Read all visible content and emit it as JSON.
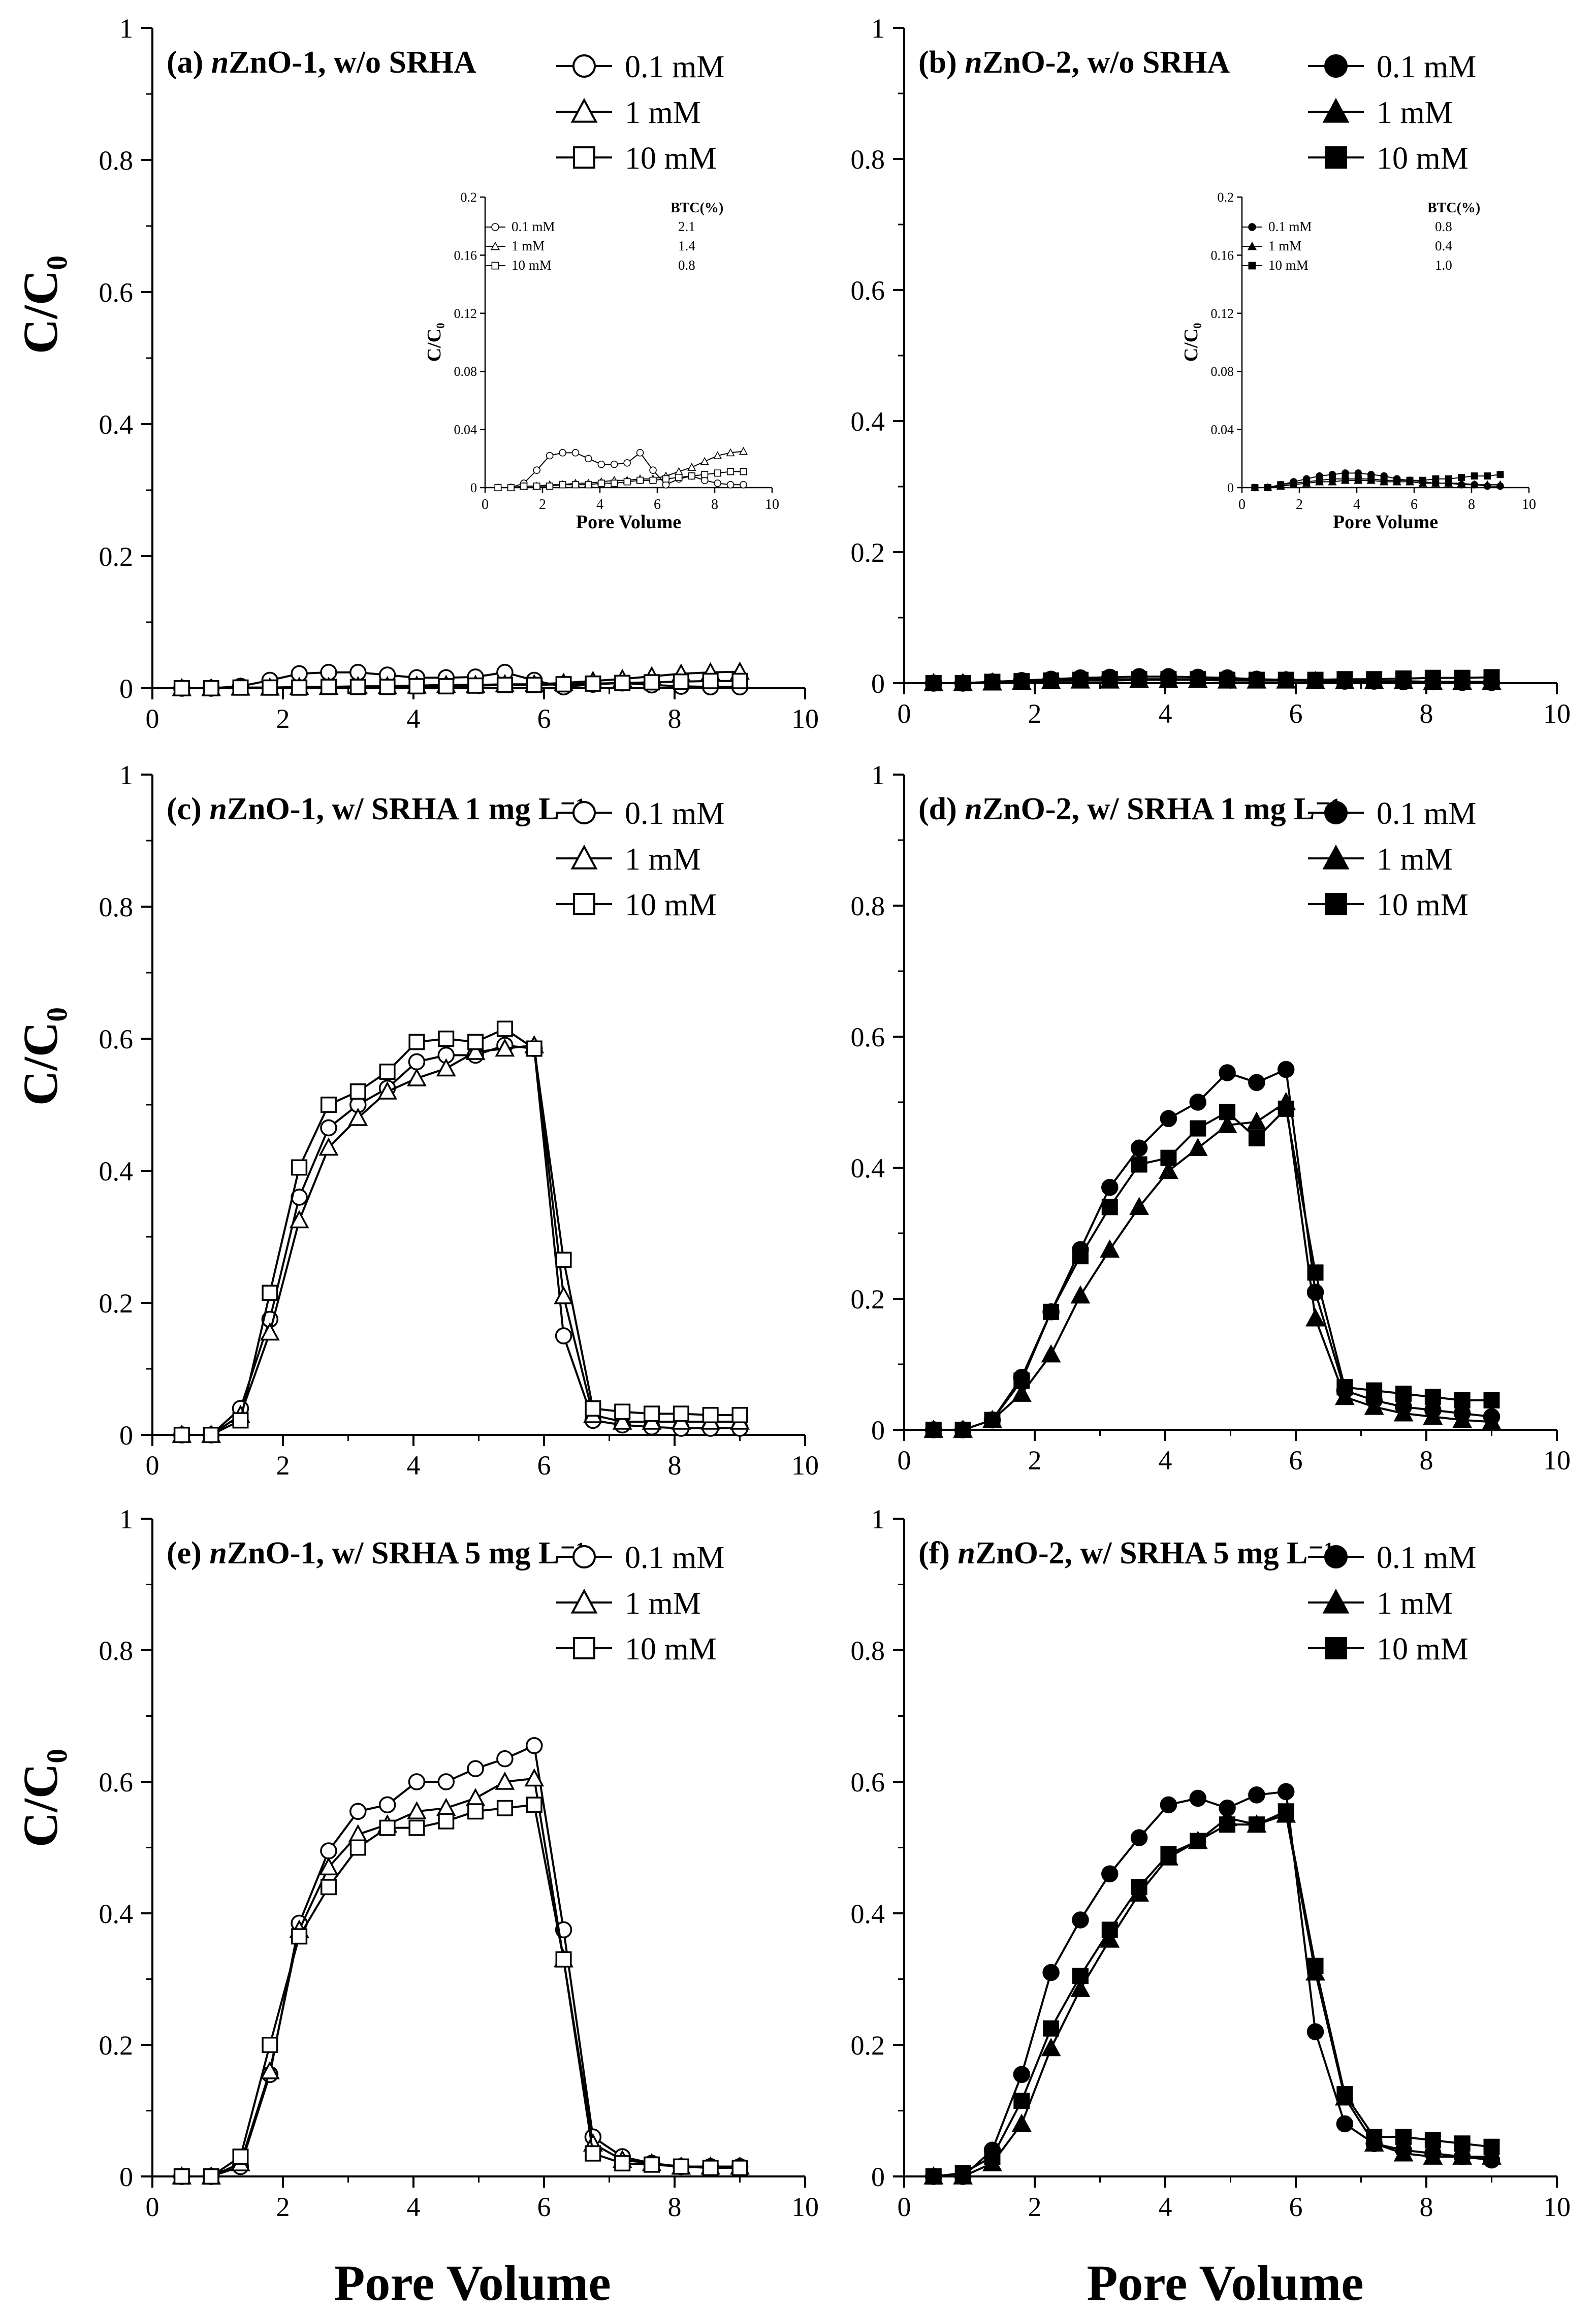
{
  "figure": {
    "ylabel": "C/C₀",
    "xlabel": "Pore Volume"
  },
  "chart_data": [
    {
      "id": "a",
      "type": "line",
      "title_prefix": "(a) ",
      "title_italic": "n",
      "title_rest": "ZnO-1, w/o SRHA",
      "xlim": [
        0,
        10
      ],
      "ylim": [
        0,
        1
      ],
      "xticks": [
        "0",
        "2",
        "4",
        "6",
        "8",
        "10"
      ],
      "yticks": [
        "0",
        "0.2",
        "0.4",
        "0.6",
        "0.8",
        "1"
      ],
      "grid": false,
      "legend_position": "top-right",
      "marker_fill": "open",
      "x": [
        0.45,
        0.9,
        1.35,
        1.8,
        2.25,
        2.7,
        3.15,
        3.6,
        4.05,
        4.5,
        4.95,
        5.4,
        5.85,
        6.3,
        6.75,
        7.2,
        7.65,
        8.1,
        8.55,
        9.0
      ],
      "series": [
        {
          "name": "0.1 mM",
          "marker": "circle",
          "values": [
            0,
            0,
            0.003,
            0.012,
            0.022,
            0.024,
            0.024,
            0.02,
            0.016,
            0.016,
            0.017,
            0.024,
            0.012,
            0.002,
            0.006,
            0.008,
            0.005,
            0.003,
            0.002,
            0.002
          ]
        },
        {
          "name": "1 mM",
          "marker": "triangle",
          "values": [
            0,
            0,
            0.001,
            0.001,
            0.002,
            0.002,
            0.003,
            0.003,
            0.004,
            0.005,
            0.005,
            0.006,
            0.006,
            0.008,
            0.011,
            0.014,
            0.018,
            0.022,
            0.024,
            0.025
          ]
        },
        {
          "name": "10 mM",
          "marker": "square",
          "values": [
            0,
            0,
            0.001,
            0.001,
            0.001,
            0.002,
            0.002,
            0.002,
            0.003,
            0.003,
            0.004,
            0.005,
            0.005,
            0.006,
            0.007,
            0.008,
            0.009,
            0.01,
            0.011,
            0.011
          ]
        }
      ],
      "inset": {
        "xlim": [
          0,
          10
        ],
        "ylim": [
          0,
          0.2
        ],
        "xticks": [
          "0",
          "2",
          "4",
          "6",
          "8",
          "10"
        ],
        "yticks": [
          "0",
          "0.04",
          "0.08",
          "0.12",
          "0.16",
          "0.2"
        ],
        "xlabel": "Pore Volume",
        "ylabel": "C/C₀",
        "table_header": "BTC(%)",
        "btc": [
          "2.1",
          "1.4",
          "0.8"
        ]
      }
    },
    {
      "id": "b",
      "type": "line",
      "title_prefix": "(b) ",
      "title_italic": "n",
      "title_rest": "ZnO-2, w/o SRHA",
      "xlim": [
        0,
        10
      ],
      "ylim": [
        0,
        1
      ],
      "xticks": [
        "0",
        "2",
        "4",
        "6",
        "8",
        "10"
      ],
      "yticks": [
        "0",
        "0.2",
        "0.4",
        "0.6",
        "0.8",
        "1"
      ],
      "grid": false,
      "legend_position": "top-right",
      "marker_fill": "filled",
      "x": [
        0.45,
        0.9,
        1.35,
        1.8,
        2.25,
        2.7,
        3.15,
        3.6,
        4.05,
        4.5,
        4.95,
        5.4,
        5.85,
        6.3,
        6.75,
        7.2,
        7.65,
        8.1,
        8.55,
        9.0
      ],
      "series": [
        {
          "name": "0.1 mM",
          "marker": "circle",
          "values": [
            0,
            0,
            0.002,
            0.004,
            0.006,
            0.008,
            0.009,
            0.01,
            0.01,
            0.009,
            0.008,
            0.006,
            0.005,
            0.004,
            0.003,
            0.003,
            0.002,
            0.002,
            0.001,
            0.001
          ]
        },
        {
          "name": "1 mM",
          "marker": "triangle",
          "values": [
            0,
            0,
            0.001,
            0.002,
            0.003,
            0.004,
            0.004,
            0.005,
            0.005,
            0.005,
            0.004,
            0.004,
            0.004,
            0.003,
            0.003,
            0.003,
            0.003,
            0.002,
            0.002,
            0.002
          ]
        },
        {
          "name": "10 mM",
          "marker": "square",
          "values": [
            0,
            0,
            0.002,
            0.003,
            0.004,
            0.005,
            0.006,
            0.006,
            0.006,
            0.006,
            0.005,
            0.005,
            0.005,
            0.005,
            0.006,
            0.006,
            0.007,
            0.008,
            0.008,
            0.009
          ]
        }
      ],
      "inset": {
        "xlim": [
          0,
          10
        ],
        "ylim": [
          0,
          0.2
        ],
        "xticks": [
          "0",
          "2",
          "4",
          "6",
          "8",
          "10"
        ],
        "yticks": [
          "0",
          "0.04",
          "0.08",
          "0.12",
          "0.16",
          "0.2"
        ],
        "xlabel": "Pore Volume",
        "ylabel": "C/C₀",
        "table_header": "BTC(%)",
        "btc": [
          "0.8",
          "0.4",
          "1.0"
        ]
      }
    },
    {
      "id": "c",
      "type": "line",
      "title_prefix": "(c) ",
      "title_italic": "n",
      "title_rest": "ZnO-1, w/ SRHA 1 mg L⁻¹",
      "xlim": [
        0,
        10
      ],
      "ylim": [
        0,
        1
      ],
      "xticks": [
        "0",
        "2",
        "4",
        "6",
        "8",
        "10"
      ],
      "yticks": [
        "0",
        "0.2",
        "0.4",
        "0.6",
        "0.8",
        "1"
      ],
      "grid": false,
      "legend_position": "top-right",
      "marker_fill": "open",
      "x": [
        0.45,
        0.9,
        1.35,
        1.8,
        2.25,
        2.7,
        3.15,
        3.6,
        4.05,
        4.5,
        4.95,
        5.4,
        5.85,
        6.3,
        6.75,
        7.2,
        7.65,
        8.1,
        8.55,
        9.0
      ],
      "series": [
        {
          "name": "0.1 mM",
          "marker": "circle",
          "values": [
            0,
            0,
            0.04,
            0.175,
            0.36,
            0.465,
            0.5,
            0.525,
            0.565,
            0.575,
            0.575,
            0.59,
            0.585,
            0.15,
            0.022,
            0.015,
            0.012,
            0.01,
            0.01,
            0.01
          ]
        },
        {
          "name": "1 mM",
          "marker": "triangle",
          "values": [
            0,
            0,
            0.03,
            0.155,
            0.325,
            0.435,
            0.48,
            0.52,
            0.54,
            0.555,
            0.58,
            0.585,
            0.59,
            0.21,
            0.03,
            0.02,
            0.02,
            0.02,
            0.02,
            0.02
          ]
        },
        {
          "name": "10 mM",
          "marker": "square",
          "values": [
            0,
            0,
            0.022,
            0.215,
            0.405,
            0.5,
            0.52,
            0.55,
            0.595,
            0.6,
            0.595,
            0.615,
            0.585,
            0.265,
            0.04,
            0.035,
            0.032,
            0.032,
            0.03,
            0.03
          ]
        }
      ]
    },
    {
      "id": "d",
      "type": "line",
      "title_prefix": "(d) ",
      "title_italic": "n",
      "title_rest": "ZnO-2, w/ SRHA 1 mg L⁻¹",
      "xlim": [
        0,
        10
      ],
      "ylim": [
        0,
        1
      ],
      "xticks": [
        "0",
        "2",
        "4",
        "6",
        "8",
        "10"
      ],
      "yticks": [
        "0",
        "0.2",
        "0.4",
        "0.6",
        "0.8",
        "1"
      ],
      "grid": false,
      "legend_position": "top-right",
      "marker_fill": "filled",
      "x": [
        0.45,
        0.9,
        1.35,
        1.8,
        2.25,
        2.7,
        3.15,
        3.6,
        4.05,
        4.5,
        4.95,
        5.4,
        5.85,
        6.3,
        6.75,
        7.2,
        7.65,
        8.1,
        8.55,
        9.0
      ],
      "series": [
        {
          "name": "0.1 mM",
          "marker": "circle",
          "values": [
            0,
            0,
            0.015,
            0.08,
            0.18,
            0.275,
            0.37,
            0.43,
            0.475,
            0.5,
            0.545,
            0.53,
            0.55,
            0.21,
            0.06,
            0.045,
            0.035,
            0.03,
            0.025,
            0.02
          ]
        },
        {
          "name": "1 mM",
          "marker": "triangle",
          "values": [
            0,
            0,
            0.015,
            0.055,
            0.115,
            0.205,
            0.275,
            0.34,
            0.395,
            0.43,
            0.465,
            0.47,
            0.5,
            0.17,
            0.05,
            0.035,
            0.025,
            0.02,
            0.015,
            0.012
          ]
        },
        {
          "name": "10 mM",
          "marker": "square",
          "values": [
            0,
            0,
            0.015,
            0.075,
            0.18,
            0.265,
            0.34,
            0.405,
            0.415,
            0.46,
            0.485,
            0.445,
            0.49,
            0.24,
            0.065,
            0.06,
            0.055,
            0.05,
            0.045,
            0.045
          ]
        }
      ]
    },
    {
      "id": "e",
      "type": "line",
      "title_prefix": "(e) ",
      "title_italic": "n",
      "title_rest": "ZnO-1, w/ SRHA 5 mg L⁻¹",
      "xlim": [
        0,
        10
      ],
      "ylim": [
        0,
        1
      ],
      "xticks": [
        "0",
        "2",
        "4",
        "6",
        "8",
        "10"
      ],
      "yticks": [
        "0",
        "0.2",
        "0.4",
        "0.6",
        "0.8",
        "1"
      ],
      "grid": false,
      "legend_position": "top-right",
      "marker_fill": "open",
      "x": [
        0.45,
        0.9,
        1.35,
        1.8,
        2.25,
        2.7,
        3.15,
        3.6,
        4.05,
        4.5,
        4.95,
        5.4,
        5.85,
        6.3,
        6.75,
        7.2,
        7.65,
        8.1,
        8.55,
        9.0
      ],
      "series": [
        {
          "name": "0.1 mM",
          "marker": "circle",
          "values": [
            0,
            0,
            0.015,
            0.155,
            0.385,
            0.495,
            0.555,
            0.565,
            0.6,
            0.6,
            0.62,
            0.635,
            0.655,
            0.375,
            0.06,
            0.03,
            0.02,
            0.015,
            0.015,
            0.015
          ]
        },
        {
          "name": "1 mM",
          "marker": "triangle",
          "values": [
            0,
            0,
            0.02,
            0.16,
            0.375,
            0.47,
            0.52,
            0.535,
            0.555,
            0.56,
            0.575,
            0.6,
            0.605,
            0.33,
            0.05,
            0.025,
            0.02,
            0.015,
            0.015,
            0.015
          ]
        },
        {
          "name": "10 mM",
          "marker": "square",
          "values": [
            0,
            0,
            0.03,
            0.2,
            0.365,
            0.44,
            0.5,
            0.53,
            0.53,
            0.54,
            0.555,
            0.56,
            0.565,
            0.33,
            0.035,
            0.02,
            0.018,
            0.015,
            0.013,
            0.013
          ]
        }
      ]
    },
    {
      "id": "f",
      "type": "line",
      "title_prefix": "(f) ",
      "title_italic": "n",
      "title_rest": "ZnO-2, w/ SRHA 5 mg L⁻¹",
      "xlim": [
        0,
        10
      ],
      "ylim": [
        0,
        1
      ],
      "xticks": [
        "0",
        "2",
        "4",
        "6",
        "8",
        "10"
      ],
      "yticks": [
        "0",
        "0.2",
        "0.4",
        "0.6",
        "0.8",
        "1"
      ],
      "grid": false,
      "legend_position": "top-right",
      "marker_fill": "filled",
      "x": [
        0.45,
        0.9,
        1.35,
        1.8,
        2.25,
        2.7,
        3.15,
        3.6,
        4.05,
        4.5,
        4.95,
        5.4,
        5.85,
        6.3,
        6.75,
        7.2,
        7.65,
        8.1,
        8.55,
        9.0
      ],
      "series": [
        {
          "name": "0.1 mM",
          "marker": "circle",
          "values": [
            0,
            0,
            0.04,
            0.155,
            0.31,
            0.39,
            0.46,
            0.515,
            0.565,
            0.575,
            0.56,
            0.58,
            0.585,
            0.22,
            0.08,
            0.05,
            0.04,
            0.035,
            0.03,
            0.025
          ]
        },
        {
          "name": "1 mM",
          "marker": "triangle",
          "values": [
            0,
            0,
            0.02,
            0.08,
            0.195,
            0.285,
            0.36,
            0.43,
            0.485,
            0.51,
            0.545,
            0.535,
            0.55,
            0.31,
            0.12,
            0.05,
            0.035,
            0.03,
            0.03,
            0.03
          ]
        },
        {
          "name": "10 mM",
          "marker": "square",
          "values": [
            0,
            0.005,
            0.03,
            0.115,
            0.225,
            0.305,
            0.375,
            0.44,
            0.49,
            0.51,
            0.535,
            0.535,
            0.555,
            0.32,
            0.125,
            0.06,
            0.06,
            0.055,
            0.05,
            0.045
          ]
        }
      ]
    }
  ]
}
